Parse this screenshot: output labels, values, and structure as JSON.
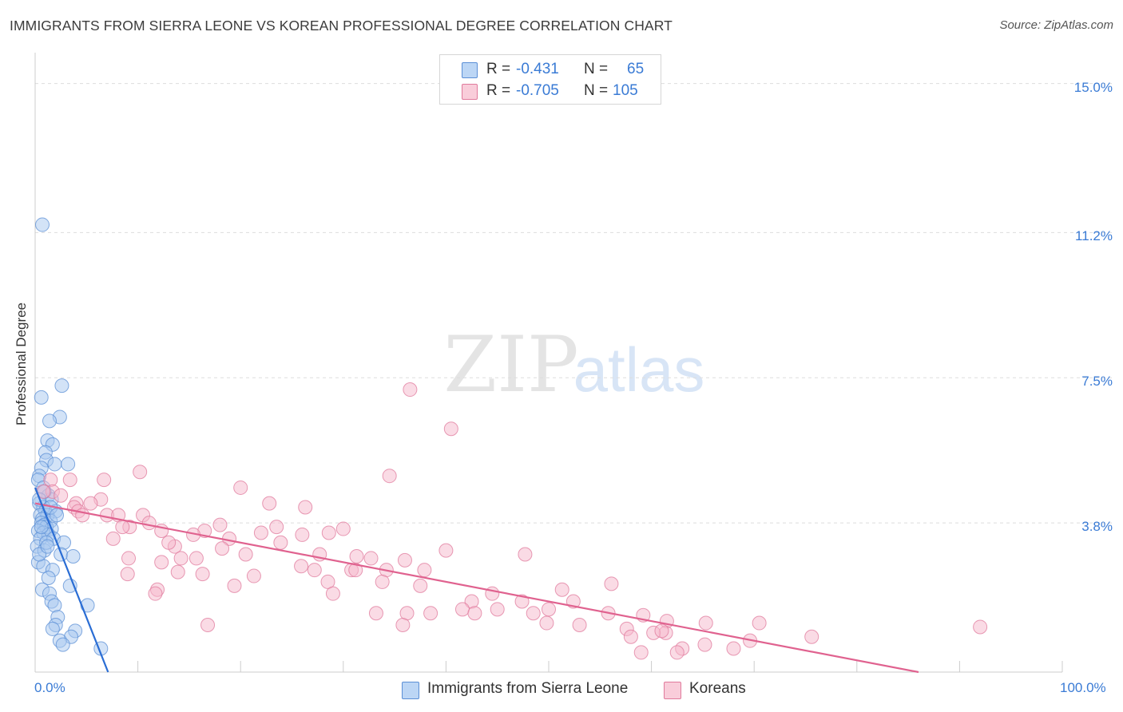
{
  "header": {
    "title": "IMMIGRANTS FROM SIERRA LEONE VS KOREAN PROFESSIONAL DEGREE CORRELATION CHART",
    "source": "Source: ZipAtlas.com"
  },
  "watermark": {
    "zip": "ZIP",
    "atlas": "atlas"
  },
  "legend_top": [
    {
      "r_label": "R =",
      "r_value": "-0.431",
      "n_label": "N =",
      "n_value": "65"
    },
    {
      "r_label": "R =",
      "r_value": "-0.705",
      "n_label": "N =",
      "n_value": "105"
    }
  ],
  "legend_bottom": [
    {
      "label": "Immigrants from Sierra Leone"
    },
    {
      "label": "Koreans"
    }
  ],
  "colors": {
    "series_a_fill": "#a8c8f0",
    "series_a_stroke": "#5b8fd6",
    "series_a_line": "#2a6dd4",
    "series_b_fill": "#f5b8cb",
    "series_b_stroke": "#e07a9c",
    "series_b_line": "#e0628f",
    "tick_text": "#3a7bd5",
    "grid": "#dddddd"
  },
  "chart_data": {
    "type": "scatter",
    "title": "IMMIGRANTS FROM SIERRA LEONE VS KOREAN PROFESSIONAL DEGREE CORRELATION CHART",
    "xlabel": "",
    "ylabel": "Professional Degree",
    "xlim": [
      0,
      100
    ],
    "ylim": [
      0,
      15.5
    ],
    "yticks": [
      3.8,
      7.5,
      11.2,
      15.0
    ],
    "ytick_labels": [
      "3.8%",
      "7.5%",
      "11.2%",
      "15.0%"
    ],
    "xtick_labels": [
      "0.0%",
      "100.0%"
    ],
    "grid": true,
    "series": [
      {
        "name": "Immigrants from Sierra Leone",
        "r": -0.431,
        "n": 65,
        "trend": {
          "x": [
            0,
            7.1
          ],
          "y": [
            4.7,
            0
          ]
        },
        "points": [
          [
            0.7,
            11.4
          ],
          [
            2.6,
            7.3
          ],
          [
            0.6,
            7.0
          ],
          [
            2.4,
            6.5
          ],
          [
            1.4,
            6.4
          ],
          [
            1.2,
            5.9
          ],
          [
            1.7,
            5.8
          ],
          [
            1.0,
            5.6
          ],
          [
            1.1,
            5.4
          ],
          [
            1.9,
            5.3
          ],
          [
            3.2,
            5.3
          ],
          [
            0.6,
            5.2
          ],
          [
            0.4,
            5.0
          ],
          [
            0.3,
            4.9
          ],
          [
            0.8,
            4.7
          ],
          [
            1.3,
            4.5
          ],
          [
            1.6,
            4.4
          ],
          [
            0.4,
            4.3
          ],
          [
            0.8,
            4.2
          ],
          [
            1.0,
            4.1
          ],
          [
            2.0,
            4.1
          ],
          [
            0.5,
            4.0
          ],
          [
            1.2,
            4.0
          ],
          [
            0.7,
            3.9
          ],
          [
            1.5,
            3.85
          ],
          [
            0.6,
            3.8
          ],
          [
            0.9,
            3.75
          ],
          [
            1.1,
            3.7
          ],
          [
            1.6,
            3.65
          ],
          [
            0.3,
            3.6
          ],
          [
            0.8,
            3.55
          ],
          [
            1.3,
            3.5
          ],
          [
            0.5,
            3.4
          ],
          [
            1.8,
            3.4
          ],
          [
            2.8,
            3.3
          ],
          [
            0.2,
            3.2
          ],
          [
            0.9,
            3.1
          ],
          [
            2.5,
            3.0
          ],
          [
            3.7,
            2.95
          ],
          [
            0.3,
            2.8
          ],
          [
            0.8,
            2.7
          ],
          [
            1.7,
            2.6
          ],
          [
            1.3,
            2.4
          ],
          [
            3.4,
            2.2
          ],
          [
            0.7,
            2.1
          ],
          [
            1.4,
            2.0
          ],
          [
            1.6,
            1.8
          ],
          [
            1.9,
            1.7
          ],
          [
            5.1,
            1.7
          ],
          [
            2.2,
            1.4
          ],
          [
            2.0,
            1.2
          ],
          [
            1.7,
            1.1
          ],
          [
            3.9,
            1.05
          ],
          [
            3.5,
            0.9
          ],
          [
            2.4,
            0.8
          ],
          [
            2.7,
            0.7
          ],
          [
            6.4,
            0.6
          ],
          [
            0.4,
            3.0
          ],
          [
            1.1,
            3.3
          ],
          [
            0.6,
            3.7
          ],
          [
            1.5,
            4.2
          ],
          [
            0.9,
            4.6
          ],
          [
            2.1,
            4.0
          ],
          [
            0.4,
            4.4
          ],
          [
            1.2,
            3.2
          ]
        ]
      },
      {
        "name": "Koreans",
        "r": -0.705,
        "n": 105,
        "trend": {
          "x": [
            0,
            86
          ],
          "y": [
            4.3,
            0
          ]
        },
        "points": [
          [
            36.5,
            7.2
          ],
          [
            40.5,
            6.2
          ],
          [
            10.2,
            5.1
          ],
          [
            34.5,
            5.0
          ],
          [
            6.7,
            4.9
          ],
          [
            1.5,
            4.9
          ],
          [
            3.4,
            4.9
          ],
          [
            1.7,
            4.6
          ],
          [
            2.5,
            4.5
          ],
          [
            20.0,
            4.7
          ],
          [
            0.8,
            4.6
          ],
          [
            6.4,
            4.4
          ],
          [
            4.0,
            4.3
          ],
          [
            22.8,
            4.3
          ],
          [
            26.3,
            4.2
          ],
          [
            3.8,
            4.2
          ],
          [
            5.4,
            4.3
          ],
          [
            4.2,
            4.1
          ],
          [
            7.0,
            4.0
          ],
          [
            8.1,
            4.0
          ],
          [
            10.5,
            4.0
          ],
          [
            4.6,
            4.0
          ],
          [
            9.2,
            3.7
          ],
          [
            11.1,
            3.8
          ],
          [
            18.0,
            3.75
          ],
          [
            23.5,
            3.7
          ],
          [
            30.0,
            3.65
          ],
          [
            12.3,
            3.6
          ],
          [
            16.5,
            3.6
          ],
          [
            22.0,
            3.55
          ],
          [
            26.0,
            3.5
          ],
          [
            28.6,
            3.55
          ],
          [
            7.6,
            3.4
          ],
          [
            15.4,
            3.5
          ],
          [
            18.9,
            3.4
          ],
          [
            23.9,
            3.3
          ],
          [
            13.6,
            3.2
          ],
          [
            18.2,
            3.15
          ],
          [
            20.5,
            3.0
          ],
          [
            27.7,
            3.0
          ],
          [
            31.3,
            2.95
          ],
          [
            32.7,
            2.9
          ],
          [
            36.0,
            2.85
          ],
          [
            40.0,
            3.1
          ],
          [
            47.7,
            3.0
          ],
          [
            14.2,
            2.9
          ],
          [
            15.7,
            2.9
          ],
          [
            9.1,
            2.9
          ],
          [
            12.3,
            2.8
          ],
          [
            25.9,
            2.7
          ],
          [
            27.2,
            2.6
          ],
          [
            30.8,
            2.6
          ],
          [
            31.2,
            2.6
          ],
          [
            34.2,
            2.6
          ],
          [
            37.9,
            2.6
          ],
          [
            13.9,
            2.55
          ],
          [
            9.0,
            2.5
          ],
          [
            16.3,
            2.5
          ],
          [
            21.3,
            2.45
          ],
          [
            28.5,
            2.3
          ],
          [
            33.8,
            2.3
          ],
          [
            19.4,
            2.2
          ],
          [
            37.5,
            2.2
          ],
          [
            11.9,
            2.1
          ],
          [
            29.0,
            2.0
          ],
          [
            44.5,
            2.0
          ],
          [
            51.3,
            2.1
          ],
          [
            56.1,
            2.25
          ],
          [
            11.7,
            2.0
          ],
          [
            42.5,
            1.8
          ],
          [
            47.4,
            1.8
          ],
          [
            52.4,
            1.8
          ],
          [
            36.2,
            1.5
          ],
          [
            38.5,
            1.5
          ],
          [
            41.6,
            1.6
          ],
          [
            45.0,
            1.6
          ],
          [
            48.5,
            1.5
          ],
          [
            33.2,
            1.5
          ],
          [
            50.0,
            1.6
          ],
          [
            55.8,
            1.5
          ],
          [
            59.2,
            1.45
          ],
          [
            61.5,
            1.3
          ],
          [
            42.8,
            1.5
          ],
          [
            53.0,
            1.2
          ],
          [
            49.8,
            1.25
          ],
          [
            16.8,
            1.2
          ],
          [
            35.8,
            1.2
          ],
          [
            61.4,
            1.0
          ],
          [
            60.2,
            1.0
          ],
          [
            65.3,
            1.25
          ],
          [
            70.5,
            1.25
          ],
          [
            57.6,
            1.1
          ],
          [
            75.6,
            0.9
          ],
          [
            69.6,
            0.8
          ],
          [
            65.2,
            0.7
          ],
          [
            63.0,
            0.6
          ],
          [
            68.0,
            0.6
          ],
          [
            59.0,
            0.5
          ],
          [
            62.5,
            0.5
          ],
          [
            92.0,
            1.15
          ],
          [
            58.0,
            0.9
          ],
          [
            61.0,
            1.05
          ],
          [
            8.5,
            3.7
          ],
          [
            13.0,
            3.3
          ]
        ]
      }
    ]
  }
}
